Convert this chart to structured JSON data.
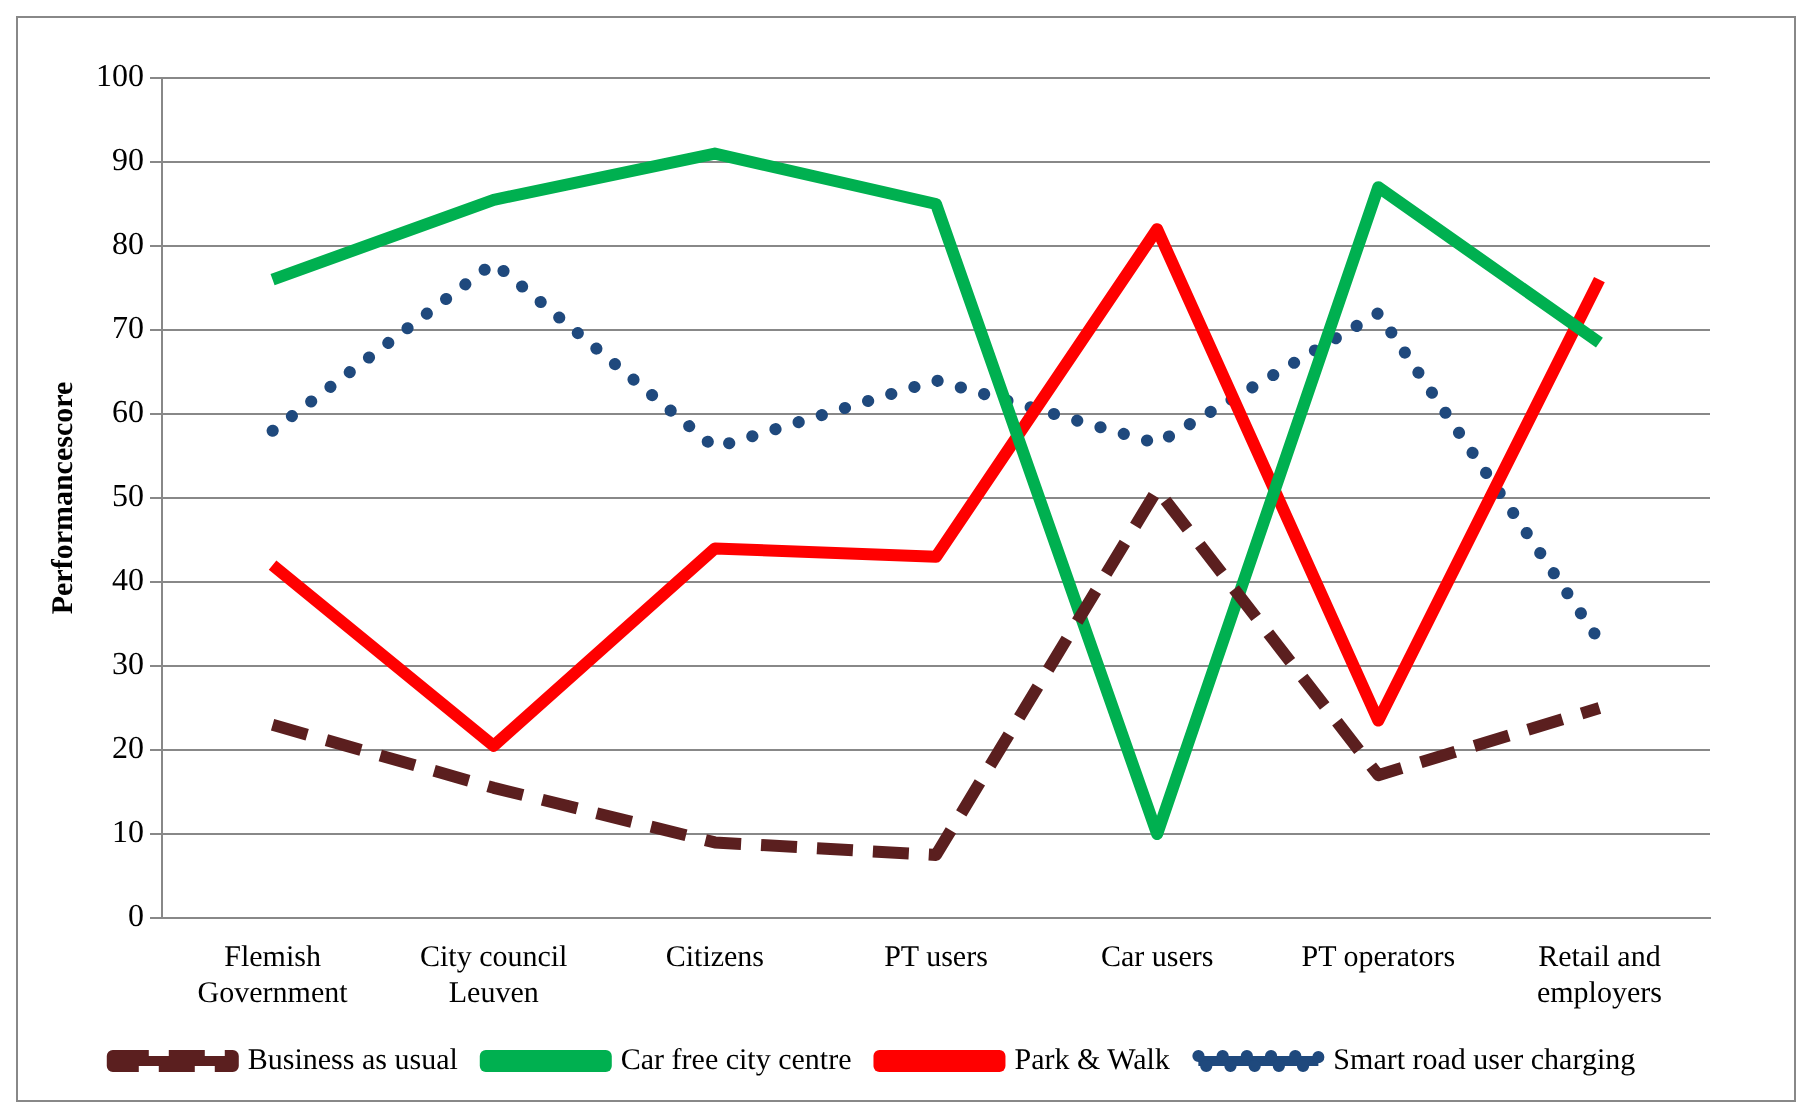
{
  "chart_data": {
    "type": "line",
    "ylabel": "Performancescore",
    "categories": [
      [
        "Flemish",
        "Government"
      ],
      [
        "City council",
        "Leuven"
      ],
      "Citizens",
      "PT users",
      "Car users",
      "PT operators",
      [
        "Retail and",
        "employers"
      ]
    ],
    "series": [
      {
        "name": "Business as usual",
        "color": "#5b1f1f",
        "line_style": "dashed",
        "values": [
          23,
          15.5,
          9,
          7.5,
          51,
          17,
          25
        ]
      },
      {
        "name": "Car free city centre",
        "color": "#00b050",
        "line_style": "solid",
        "values": [
          76,
          85.5,
          91,
          85,
          10,
          87,
          68.5
        ]
      },
      {
        "name": "Park & Walk",
        "color": "#ff0000",
        "line_style": "solid",
        "values": [
          42,
          20.5,
          44,
          43,
          82,
          23.5,
          76
        ]
      },
      {
        "name": "Smart road user charging",
        "color": "#1f497d",
        "line_style": "dotted",
        "values": [
          58,
          78,
          56,
          64,
          56.5,
          72,
          33
        ]
      }
    ],
    "ylim": [
      0,
      100
    ],
    "yticks": [
      0,
      10,
      20,
      30,
      40,
      50,
      60,
      70,
      80,
      90,
      100
    ],
    "grid": "y",
    "legend": "bottom",
    "marker": "none"
  }
}
